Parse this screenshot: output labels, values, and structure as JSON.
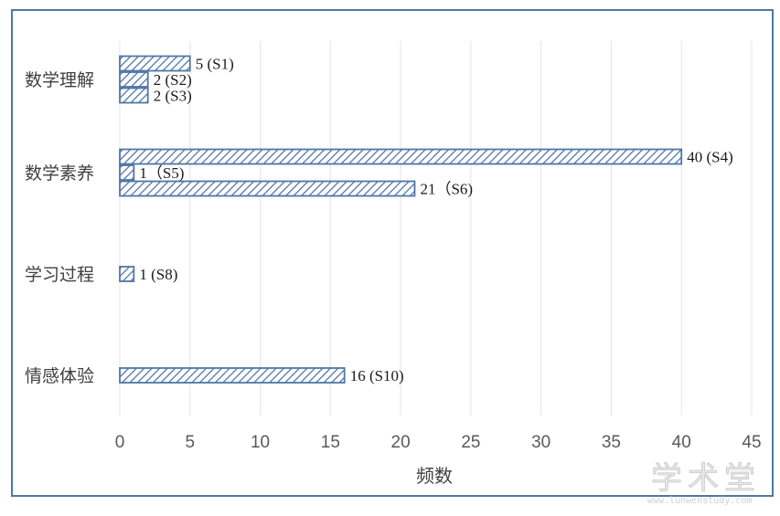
{
  "chart_data": {
    "type": "bar",
    "orientation": "horizontal",
    "xlabel": "频数",
    "xlim": [
      0,
      45
    ],
    "xticks": [
      0,
      5,
      10,
      15,
      20,
      25,
      30,
      35,
      40,
      45
    ],
    "grid": "vertical",
    "bar_color": "#4f77a8",
    "bar_fill": "hatched",
    "groups": [
      {
        "category": "数学理解",
        "bars": [
          {
            "value": 5,
            "label": "5 (S1)"
          },
          {
            "value": 2,
            "label": "2 (S2)"
          },
          {
            "value": 2,
            "label": "2 (S3)"
          }
        ]
      },
      {
        "category": "数学素养",
        "bars": [
          {
            "value": 40,
            "label": "40 (S4)"
          },
          {
            "value": 1,
            "label": "1（S5)"
          },
          {
            "value": 21,
            "label": "21（S6)"
          }
        ]
      },
      {
        "category": "学习过程",
        "bars": [
          {
            "value": 1,
            "label": "1 (S8)"
          }
        ]
      },
      {
        "category": "情感体验",
        "bars": [
          {
            "value": 16,
            "label": "16 (S10)"
          }
        ]
      }
    ]
  },
  "watermark": {
    "main": "学术堂",
    "sub": "www.lunwenstudy.com"
  }
}
